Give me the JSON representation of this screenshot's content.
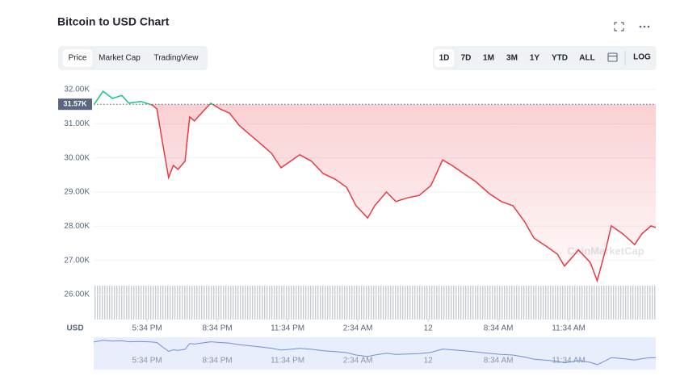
{
  "chart_data": {
    "type": "line",
    "title": "Bitcoin to USD Chart",
    "tabs": [
      "Price",
      "Market Cap",
      "TradingView"
    ],
    "active_tab": 0,
    "ranges": [
      "1D",
      "7D",
      "1M",
      "3M",
      "1Y",
      "YTD",
      "ALL"
    ],
    "active_range": 0,
    "log_button": "LOG",
    "y_axis_label": "USD",
    "watermark": "CoinMarketCap",
    "reference": {
      "value": 31570,
      "label": "31.57K"
    },
    "colors": {
      "up": "#16c784",
      "down": "#ea3943"
    },
    "grid": true,
    "x": [
      0,
      0.4,
      0.8,
      1.2,
      1.5,
      2.0,
      2.5,
      2.7,
      2.9,
      3.2,
      3.4,
      3.6,
      3.9,
      4.1,
      4.3,
      4.6,
      5.0,
      5.4,
      5.8,
      6.2,
      6.6,
      7.0,
      7.6,
      8.0,
      8.4,
      8.8,
      9.3,
      9.8,
      10.3,
      10.8,
      11.2,
      11.7,
      12.0,
      12.5,
      12.9,
      13.4,
      13.9,
      14.4,
      14.9,
      15.3,
      15.8,
      16.3,
      16.9,
      17.4,
      17.9,
      18.4,
      18.8,
      19.3,
      19.8,
      20.1,
      20.7,
      21.2,
      21.5,
      21.9,
      22.1,
      22.6,
      23.1,
      23.4,
      23.8,
      24.0
    ],
    "series": [
      {
        "name": "Price",
        "values": [
          31550,
          31950,
          31740,
          31830,
          31600,
          31650,
          31550,
          31430,
          30600,
          29420,
          29780,
          29660,
          29900,
          31200,
          31080,
          31310,
          31600,
          31430,
          31310,
          30960,
          30720,
          30490,
          30130,
          29710,
          29900,
          30090,
          29900,
          29540,
          29380,
          29140,
          28600,
          28240,
          28600,
          29000,
          28720,
          28830,
          28900,
          29190,
          29940,
          29780,
          29540,
          29310,
          28950,
          28720,
          28600,
          28130,
          27650,
          27420,
          27180,
          26830,
          27300,
          26940,
          26400,
          27420,
          28010,
          27770,
          27460,
          27770,
          28010,
          27960
        ]
      }
    ],
    "xlim": [
      0,
      24
    ],
    "xticks": [
      {
        "value": 2.28,
        "label": "5:34 PM"
      },
      {
        "value": 5.28,
        "label": "8:34 PM"
      },
      {
        "value": 8.28,
        "label": "11:34 PM"
      },
      {
        "value": 11.28,
        "label": "2:34 AM"
      },
      {
        "value": 14.28,
        "label": "12"
      },
      {
        "value": 17.28,
        "label": "8:34 AM"
      },
      {
        "value": 20.28,
        "label": "11:34 AM"
      }
    ],
    "ylim": [
      25290,
      32260
    ],
    "yticks": [
      {
        "value": 26000,
        "label": "26.00K"
      },
      {
        "value": 27000,
        "label": "27.00K"
      },
      {
        "value": 28000,
        "label": "28.00K"
      },
      {
        "value": 29000,
        "label": "29.00K"
      },
      {
        "value": 30000,
        "label": "30.00K"
      },
      {
        "value": 31000,
        "label": "31.00K"
      },
      {
        "value": 32000,
        "label": "32.00K"
      }
    ]
  }
}
